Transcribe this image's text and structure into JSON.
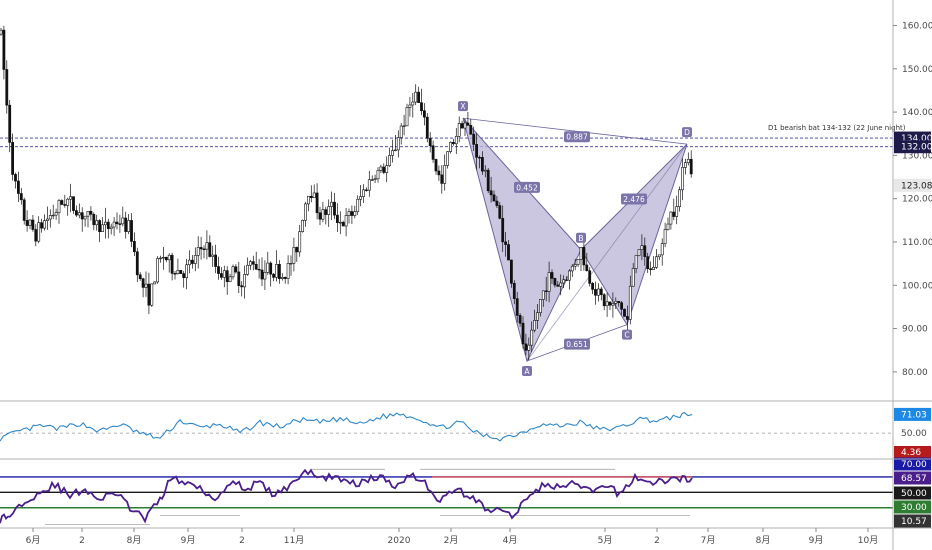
{
  "chart_data": [
    {
      "type": "candlestick",
      "y_ticks": [
        "160.00",
        "150.00",
        "140.00",
        "130.00",
        "120.00",
        "110.00",
        "100.00",
        "90.00",
        "80.00"
      ],
      "y_tick_values": [
        160,
        150,
        140,
        130,
        120,
        110,
        100,
        90,
        80
      ],
      "ylim": [
        73.5,
        164.5
      ],
      "x_tick_labels": [
        "6月",
        "2",
        "8月",
        "9月",
        "2",
        "11月",
        "2020",
        "2月",
        "4月",
        "5月",
        "2",
        "7月",
        "8月",
        "9月",
        "10月"
      ],
      "price_tags": [
        {
          "label": "134.00",
          "value": 134,
          "bg": "#1e1b4b"
        },
        {
          "label": "132.00",
          "value": 132,
          "bg": "#1e1b4b"
        },
        {
          "label": "123.08",
          "value": 123.08,
          "bg": "#e8e8e8"
        }
      ],
      "levels_dashed": [
        134,
        132
      ],
      "annotation": "D1 bearish bat 134-132 (22 June night)",
      "pattern_points": [
        {
          "label": "X",
          "bar": 463,
          "price": 138.6
        },
        {
          "label": "A",
          "bar": 527,
          "price": 82.5
        },
        {
          "label": "B",
          "bar": 581,
          "price": 108.2
        },
        {
          "label": "C",
          "bar": 627,
          "price": 90.9
        },
        {
          "label": "D",
          "bar": 687,
          "price": 132.6
        }
      ],
      "ratios": [
        {
          "label": "0.887",
          "bar": 577,
          "price": 134.2
        },
        {
          "label": "0.452",
          "bar": 527,
          "price": 122.5
        },
        {
          "label": "2.476",
          "bar": 634,
          "price": 119.8
        },
        {
          "label": "0.651",
          "bar": 577,
          "price": 86.3
        }
      ],
      "pattern_fill": "#b9b4d6",
      "pattern_stroke": "#6b659c",
      "candle_color": "#111111",
      "path_x": [
        1,
        8,
        14,
        25,
        36,
        45,
        55,
        66,
        78,
        92,
        106,
        118,
        130,
        140,
        150,
        158,
        164,
        172,
        184,
        195,
        205,
        214,
        224,
        232,
        242,
        252,
        262,
        272,
        284,
        296,
        304,
        310,
        320,
        332,
        342,
        354,
        366,
        376,
        386,
        394,
        400,
        408,
        414,
        420,
        428,
        436,
        442,
        448,
        456,
        463,
        472,
        482,
        492,
        500,
        508,
        514,
        520,
        527,
        533,
        540,
        548,
        556,
        562,
        570,
        576,
        581,
        588,
        596,
        604,
        612,
        620,
        627,
        632,
        638,
        644,
        650,
        656,
        662,
        668,
        674,
        680,
        687,
        692
      ],
      "path_y": [
        158,
        138,
        124,
        115,
        112,
        115,
        117,
        120,
        117,
        115,
        113,
        115,
        113,
        101,
        97,
        105,
        107,
        104,
        103,
        106,
        110,
        105,
        102,
        103,
        101,
        106,
        103,
        104,
        102,
        108,
        118,
        123,
        116,
        118,
        114,
        117,
        123,
        126,
        127,
        131,
        136,
        140,
        145,
        141,
        134,
        127,
        123,
        131,
        135,
        138.6,
        134,
        127,
        121,
        115,
        106,
        98,
        90,
        82.5,
        90,
        96,
        102,
        100,
        101,
        103,
        106,
        108.2,
        102,
        99,
        96,
        95,
        96,
        90.9,
        103,
        110,
        106,
        103,
        106,
        109,
        115,
        118,
        122,
        132.6,
        124
      ]
    },
    {
      "type": "line",
      "tag": {
        "label": "71.03",
        "value": 71.03,
        "bg": "#1e88e5"
      },
      "ref_tag": {
        "label": "50.00",
        "value": 50
      },
      "low_tag": {
        "label": "4.36",
        "bg": "#b71c1c"
      },
      "color": "#2f87c8",
      "ylim": [
        22,
        85
      ],
      "x": [
        0,
        20,
        40,
        60,
        80,
        100,
        120,
        140,
        160,
        180,
        200,
        220,
        240,
        260,
        280,
        300,
        320,
        340,
        360,
        380,
        400,
        420,
        440,
        460,
        480,
        500,
        520,
        540,
        560,
        580,
        600,
        620,
        640,
        660,
        680,
        692
      ],
      "y": [
        44,
        52,
        58,
        55,
        61,
        52,
        60,
        50,
        44,
        64,
        56,
        60,
        50,
        62,
        57,
        65,
        62,
        66,
        60,
        68,
        72,
        66,
        56,
        62,
        48,
        44,
        50,
        60,
        58,
        62,
        54,
        56,
        66,
        64,
        70,
        71.03
      ]
    },
    {
      "type": "line",
      "tags": [
        {
          "label": "70.00",
          "value": 70,
          "bg": "#1a1aa6"
        },
        {
          "label": "68.57",
          "value": 68.57,
          "bg": "#4a1f8c"
        },
        {
          "label": "50.00",
          "value": 50,
          "bg": "#1a1a1a"
        },
        {
          "label": "30.00",
          "value": 30,
          "bg": "#2e7d32"
        },
        {
          "label": "10.57",
          "value": 10.57,
          "bg": "#333333"
        }
      ],
      "levels": [
        {
          "value": 70,
          "color": "#1a1aa6"
        },
        {
          "value": 50,
          "color": "#1a1a1a"
        },
        {
          "value": 30,
          "color": "#2e7d32"
        }
      ],
      "red_level": {
        "value": 70,
        "x_start": 432,
        "x_end": 692,
        "color": "#e53935"
      },
      "color": "#4a1f8c",
      "ylim": [
        5,
        92
      ],
      "x": [
        0,
        10,
        25,
        40,
        55,
        70,
        85,
        100,
        115,
        130,
        145,
        160,
        170,
        185,
        200,
        215,
        230,
        245,
        260,
        275,
        290,
        305,
        320,
        335,
        350,
        365,
        380,
        395,
        410,
        425,
        440,
        455,
        470,
        485,
        500,
        515,
        530,
        545,
        560,
        575,
        590,
        605,
        620,
        635,
        650,
        665,
        680,
        692
      ],
      "y": [
        15,
        20,
        40,
        50,
        60,
        45,
        55,
        40,
        50,
        30,
        15,
        40,
        68,
        62,
        58,
        40,
        65,
        55,
        62,
        45,
        60,
        78,
        68,
        72,
        60,
        65,
        70,
        58,
        75,
        62,
        38,
        55,
        45,
        30,
        25,
        20,
        50,
        60,
        55,
        62,
        50,
        58,
        48,
        70,
        62,
        65,
        68,
        68.57
      ]
    }
  ]
}
